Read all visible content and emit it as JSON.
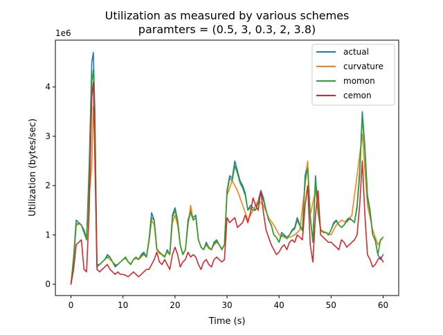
{
  "chart_data": {
    "type": "line",
    "title": "Utilization as measured by various schemes",
    "subtitle": "paramters = (0.5, 3, 0.3, 2, 3.8)",
    "xlabel": "Time (s)",
    "ylabel": "Utilization (bytes/sec)",
    "y_offset_text": "1e6",
    "xlim": [
      -3,
      63
    ],
    "ylim": [
      -0.23,
      4.95
    ],
    "x_ticks": [
      0,
      10,
      20,
      30,
      40,
      50,
      60
    ],
    "y_ticks": [
      0,
      1,
      2,
      3,
      4
    ],
    "x_tick_labels": [
      "0",
      "10",
      "20",
      "30",
      "40",
      "50",
      "60"
    ],
    "y_tick_labels": [
      "0",
      "1",
      "2",
      "3",
      "4"
    ],
    "grid": false,
    "legend_position": "top-right",
    "series": [
      {
        "name": "actual",
        "color": "#1f77b4",
        "x": [
          0,
          0.5,
          1,
          1.5,
          2,
          2.5,
          3,
          3.5,
          4,
          4.3,
          4.6,
          5,
          5.5,
          6,
          6.5,
          7,
          7.5,
          8,
          8.5,
          9,
          9.5,
          10,
          10.5,
          11,
          11.5,
          12,
          12.5,
          13,
          13.5,
          14,
          14.5,
          15,
          15.5,
          16,
          16.5,
          17,
          17.5,
          18,
          18.5,
          19,
          19.5,
          20,
          20.5,
          21,
          21.5,
          22,
          22.5,
          23,
          23.5,
          24,
          24.5,
          25,
          25.5,
          26,
          26.5,
          27,
          27.5,
          28,
          28.5,
          29,
          29.5,
          30,
          30.5,
          31,
          31.5,
          32,
          32.5,
          33,
          33.5,
          34,
          34.5,
          35,
          35.5,
          36,
          36.5,
          37,
          37.5,
          38,
          38.5,
          39,
          39.5,
          40,
          40.5,
          41,
          41.5,
          42,
          42.5,
          43,
          43.5,
          44,
          44.5,
          45,
          45.5,
          46,
          46.5,
          47,
          47.5,
          48,
          48.5,
          49,
          49.5,
          50,
          50.5,
          51,
          51.5,
          52,
          52.5,
          53,
          53.5,
          54,
          54.5,
          55,
          55.5,
          56,
          56.5,
          57,
          57.5,
          58,
          58.5,
          59,
          59.5,
          60
        ],
        "values": [
          0.0,
          0.55,
          1.3,
          1.25,
          1.2,
          1.05,
          0.9,
          2.4,
          4.5,
          4.7,
          3.5,
          0.35,
          0.4,
          0.45,
          0.5,
          0.6,
          0.55,
          0.45,
          0.35,
          0.4,
          0.45,
          0.5,
          0.55,
          0.45,
          0.4,
          0.5,
          0.55,
          0.5,
          0.6,
          0.65,
          0.55,
          0.9,
          1.45,
          1.3,
          0.7,
          0.65,
          0.6,
          0.55,
          0.7,
          0.6,
          1.4,
          1.55,
          1.3,
          0.8,
          0.6,
          0.7,
          1.3,
          1.5,
          1.35,
          1.4,
          0.9,
          0.75,
          0.7,
          0.85,
          0.75,
          0.7,
          0.85,
          0.9,
          0.8,
          0.7,
          0.8,
          1.9,
          2.2,
          2.15,
          2.5,
          2.3,
          2.1,
          2.0,
          1.85,
          1.5,
          1.6,
          1.55,
          1.5,
          1.7,
          1.9,
          1.75,
          1.5,
          1.3,
          1.2,
          1.0,
          0.95,
          0.85,
          1.05,
          1.0,
          0.95,
          1.0,
          1.1,
          1.15,
          1.35,
          1.2,
          1.1,
          2.2,
          2.45,
          1.4,
          0.85,
          2.2,
          1.5,
          1.1,
          1.05,
          1.05,
          1.0,
          1.1,
          1.25,
          1.3,
          1.2,
          1.15,
          1.2,
          1.3,
          1.35,
          1.3,
          1.25,
          1.6,
          2.3,
          3.5,
          2.8,
          1.8,
          1.5,
          1.0,
          0.9,
          0.6,
          0.5,
          0.6
        ]
      },
      {
        "name": "curvature",
        "color": "#ff7f0e",
        "x": [
          0,
          0.5,
          1,
          1.5,
          2,
          2.5,
          3,
          3.5,
          4,
          4.3,
          4.6,
          5,
          5.5,
          6,
          6.5,
          7,
          7.5,
          8,
          8.5,
          9,
          9.5,
          10,
          10.5,
          11,
          11.5,
          12,
          12.5,
          13,
          13.5,
          14,
          14.5,
          15,
          15.5,
          16,
          16.5,
          17,
          17.5,
          18,
          18.5,
          19,
          19.5,
          20,
          20.5,
          21,
          21.5,
          22,
          22.5,
          23,
          23.5,
          24,
          24.5,
          25,
          25.5,
          26,
          26.5,
          27,
          27.5,
          28,
          28.5,
          29,
          29.5,
          30,
          31,
          32,
          33,
          34,
          35,
          36,
          37,
          38,
          39,
          40,
          41,
          42,
          43,
          44,
          45,
          45.5,
          46,
          47,
          47.5,
          48,
          49,
          50,
          51,
          52,
          53,
          54,
          55,
          56,
          57,
          58,
          59,
          60
        ],
        "values": [
          0.0,
          0.5,
          1.2,
          1.22,
          1.2,
          1.1,
          0.95,
          1.8,
          2.4,
          3.6,
          2.8,
          0.4,
          0.4,
          0.45,
          0.5,
          0.55,
          0.5,
          0.45,
          0.4,
          0.4,
          0.45,
          0.5,
          0.52,
          0.45,
          0.42,
          0.5,
          0.52,
          0.5,
          0.55,
          0.6,
          0.55,
          0.85,
          1.3,
          1.2,
          0.7,
          0.62,
          0.6,
          0.58,
          0.65,
          0.6,
          1.25,
          1.4,
          1.2,
          0.8,
          0.62,
          0.7,
          1.2,
          1.6,
          1.3,
          1.35,
          0.9,
          0.75,
          0.7,
          0.8,
          0.72,
          0.7,
          0.8,
          0.85,
          0.8,
          0.72,
          0.8,
          1.8,
          2.1,
          1.9,
          1.6,
          1.3,
          1.5,
          1.7,
          1.6,
          1.35,
          1.2,
          1.0,
          0.95,
          0.95,
          1.0,
          1.1,
          2.0,
          2.5,
          1.4,
          1.9,
          1.6,
          1.1,
          1.05,
          1.0,
          1.2,
          1.3,
          1.25,
          1.4,
          2.2,
          3.05,
          1.6,
          1.1,
          0.8,
          0.95
        ]
      },
      {
        "name": "momon",
        "color": "#2ca02c",
        "x": [
          0,
          0.5,
          1,
          1.5,
          2,
          2.5,
          3,
          3.5,
          4,
          4.3,
          4.6,
          5,
          5.5,
          6,
          6.5,
          7,
          7.5,
          8,
          8.5,
          9,
          9.5,
          10,
          10.5,
          11,
          11.5,
          12,
          12.5,
          13,
          13.5,
          14,
          14.5,
          15,
          15.5,
          16,
          16.5,
          17,
          17.5,
          18,
          18.5,
          19,
          19.5,
          20,
          20.5,
          21,
          21.5,
          22,
          22.5,
          23,
          23.5,
          24,
          24.5,
          25,
          25.5,
          26,
          26.5,
          27,
          27.5,
          28,
          28.5,
          29,
          29.5,
          30,
          30.5,
          31,
          31.5,
          32,
          32.5,
          33,
          33.5,
          34,
          34.5,
          35,
          35.5,
          36,
          36.5,
          37,
          37.5,
          38,
          38.5,
          39,
          39.5,
          40,
          40.5,
          41,
          41.5,
          42,
          42.5,
          43,
          43.5,
          44,
          44.5,
          45,
          45.5,
          46,
          46.5,
          47,
          47.5,
          48,
          48.5,
          49,
          49.5,
          50,
          50.5,
          51,
          51.5,
          52,
          52.5,
          53,
          53.5,
          54,
          54.5,
          55,
          55.5,
          56,
          56.5,
          57,
          57.5,
          58,
          58.5,
          59,
          59.5,
          60
        ],
        "values": [
          0.0,
          0.5,
          1.2,
          1.25,
          1.2,
          1.1,
          0.9,
          2.2,
          4.1,
          4.35,
          3.2,
          0.4,
          0.4,
          0.45,
          0.5,
          0.55,
          0.55,
          0.45,
          0.38,
          0.4,
          0.45,
          0.5,
          0.55,
          0.45,
          0.4,
          0.5,
          0.55,
          0.5,
          0.58,
          0.62,
          0.55,
          0.9,
          1.35,
          1.3,
          0.72,
          0.65,
          0.6,
          0.55,
          0.68,
          0.6,
          1.35,
          1.5,
          1.28,
          0.8,
          0.6,
          0.7,
          1.25,
          1.45,
          1.3,
          1.35,
          0.9,
          0.75,
          0.7,
          0.82,
          0.75,
          0.7,
          0.82,
          0.88,
          0.8,
          0.7,
          0.8,
          1.85,
          2.15,
          2.1,
          2.4,
          2.25,
          2.05,
          1.95,
          1.8,
          1.5,
          1.55,
          1.5,
          1.5,
          1.65,
          1.85,
          1.7,
          1.5,
          1.3,
          1.2,
          1.0,
          0.95,
          0.85,
          1.0,
          0.98,
          0.92,
          1.0,
          1.08,
          1.12,
          1.3,
          1.18,
          1.08,
          2.1,
          2.35,
          1.35,
          0.85,
          2.1,
          1.45,
          1.1,
          1.05,
          1.05,
          1.0,
          1.1,
          1.22,
          1.28,
          1.2,
          1.15,
          1.2,
          1.28,
          1.32,
          1.3,
          1.25,
          1.55,
          2.2,
          3.4,
          2.7,
          1.75,
          1.45,
          1.0,
          0.88,
          0.6,
          0.9,
          0.95
        ]
      },
      {
        "name": "cemon",
        "color": "#d62728",
        "x": [
          0,
          0.5,
          1,
          1.5,
          2,
          2.5,
          3,
          3.5,
          4,
          4.3,
          4.6,
          5,
          5.5,
          6,
          6.5,
          7,
          7.5,
          8,
          8.5,
          9,
          9.5,
          10,
          10.5,
          11,
          11.5,
          12,
          12.5,
          13,
          13.5,
          14,
          14.5,
          15,
          15.5,
          16,
          16.5,
          17,
          17.5,
          18,
          18.5,
          19,
          19.5,
          20,
          20.5,
          21,
          21.5,
          22,
          22.5,
          23,
          23.5,
          24,
          24.5,
          25,
          25.5,
          26,
          26.5,
          27,
          27.5,
          28,
          28.5,
          29,
          29.5,
          30,
          30.5,
          31,
          31.5,
          32,
          32.5,
          33,
          33.5,
          34,
          34.5,
          35,
          35.5,
          36,
          36.5,
          37,
          37.5,
          38,
          38.5,
          39,
          39.5,
          40,
          40.5,
          41,
          41.5,
          42,
          42.5,
          43,
          43.5,
          44,
          44.5,
          45,
          45.5,
          46,
          46.5,
          47,
          47.5,
          48,
          48.5,
          49,
          49.5,
          50,
          50.5,
          51,
          51.5,
          52,
          52.5,
          53,
          53.5,
          54,
          54.5,
          55,
          55.5,
          56,
          56.5,
          57,
          57.5,
          58,
          58.5,
          59,
          59.5,
          60
        ],
        "values": [
          0.0,
          0.3,
          0.8,
          0.85,
          0.9,
          0.3,
          0.25,
          1.5,
          3.8,
          4.1,
          2.5,
          0.3,
          0.25,
          0.3,
          0.35,
          0.4,
          0.3,
          0.25,
          0.2,
          0.25,
          0.2,
          0.2,
          0.18,
          0.15,
          0.2,
          0.25,
          0.2,
          0.15,
          0.2,
          0.25,
          0.3,
          0.3,
          0.4,
          0.5,
          0.65,
          0.45,
          0.4,
          0.5,
          0.4,
          0.3,
          0.6,
          0.75,
          0.6,
          0.35,
          0.45,
          0.5,
          0.65,
          0.55,
          0.6,
          0.55,
          0.4,
          0.3,
          0.45,
          0.5,
          0.4,
          0.35,
          0.5,
          0.55,
          0.5,
          0.45,
          0.5,
          1.35,
          1.25,
          1.3,
          1.35,
          1.15,
          1.2,
          1.25,
          1.4,
          1.25,
          1.45,
          1.75,
          1.6,
          1.5,
          1.9,
          1.45,
          1.1,
          0.95,
          0.8,
          0.7,
          0.6,
          0.65,
          0.75,
          0.8,
          0.7,
          0.85,
          0.9,
          0.85,
          1.0,
          0.95,
          0.9,
          1.6,
          2.0,
          0.8,
          0.45,
          1.4,
          1.9,
          1.0,
          0.95,
          0.9,
          0.85,
          0.85,
          0.8,
          0.75,
          0.7,
          0.9,
          0.85,
          0.75,
          0.8,
          0.85,
          0.9,
          1.0,
          1.6,
          2.5,
          1.4,
          0.6,
          0.5,
          0.35,
          0.4,
          0.5,
          0.55,
          0.45
        ]
      }
    ]
  }
}
